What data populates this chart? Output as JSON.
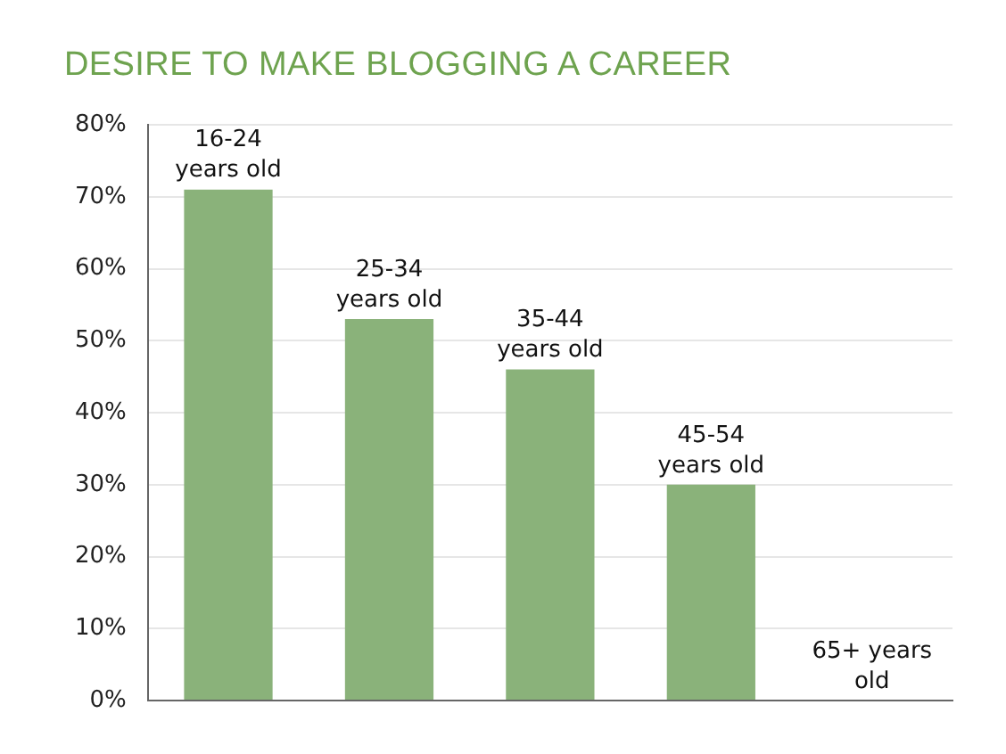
{
  "chart_data": {
    "type": "bar",
    "title": "DESIRE TO MAKE BLOGGING A CAREER",
    "categories": [
      "16-24 years old",
      "25-34 years old",
      "35-44 years old",
      "45-54 years old",
      "65+ years old"
    ],
    "values": [
      71,
      53,
      46,
      30,
      0
    ],
    "color": "#8ab27a",
    "ylim": [
      0,
      80
    ],
    "yticks": [
      {
        "value": 0,
        "label": "0%"
      },
      {
        "value": 10,
        "label": "10%"
      },
      {
        "value": 20,
        "label": "20%"
      },
      {
        "value": 30,
        "label": "30%"
      },
      {
        "value": 40,
        "label": "40%"
      },
      {
        "value": 50,
        "label": "50%"
      },
      {
        "value": 60,
        "label": "60%"
      },
      {
        "value": 70,
        "label": "70%"
      },
      {
        "value": 80,
        "label": "80%"
      }
    ],
    "grid": "y",
    "legend": false
  }
}
